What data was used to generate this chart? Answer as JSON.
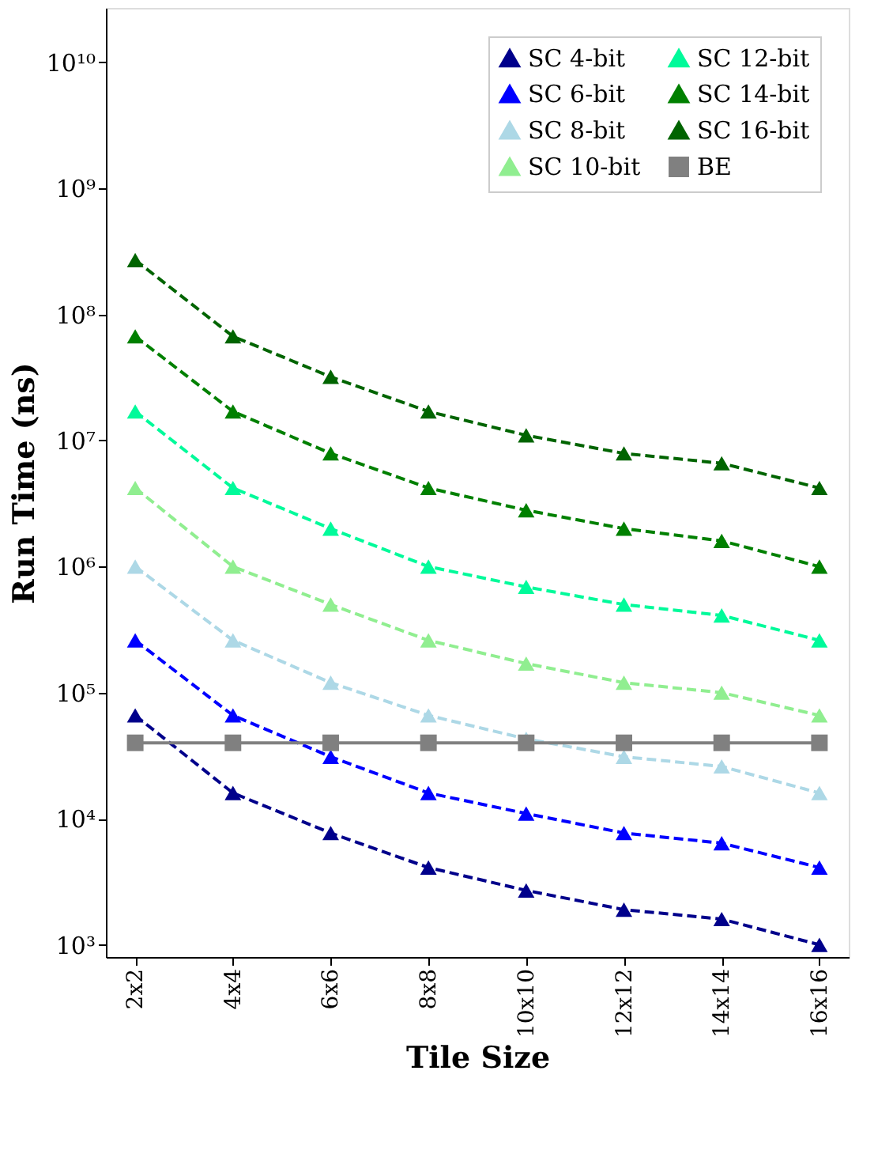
{
  "chart_data": {
    "type": "line",
    "xlabel": "Tile Size",
    "ylabel": "Run Time (ns)",
    "categories": [
      "2x2",
      "4x4",
      "6x6",
      "8x8",
      "10x10",
      "12x12",
      "14x14",
      "16x16"
    ],
    "series": [
      {
        "name": "SC 4-bit",
        "color": "#00008b",
        "marker": "triangle",
        "line_style": "dashed",
        "values": [
          66000,
          16000,
          7700,
          4100,
          2700,
          1900,
          1600,
          1000
        ]
      },
      {
        "name": "SC 6-bit",
        "color": "#0000ff",
        "marker": "triangle",
        "line_style": "dashed",
        "values": [
          260000,
          66000,
          31000,
          16000,
          11000,
          7700,
          6400,
          4100
        ]
      },
      {
        "name": "SC 8-bit",
        "color": "#add8e6",
        "marker": "triangle",
        "line_style": "dashed",
        "values": [
          1000000,
          260000,
          120000,
          66000,
          43000,
          31000,
          26000,
          16000
        ]
      },
      {
        "name": "SC 10-bit",
        "color": "#90ee90",
        "marker": "triangle",
        "line_style": "dashed",
        "values": [
          4200000,
          1000000,
          500000,
          260000,
          170000,
          120000,
          100000,
          66000
        ]
      },
      {
        "name": "SC 12-bit",
        "color": "#00fa9a",
        "marker": "triangle",
        "line_style": "dashed",
        "values": [
          17000000,
          4200000,
          2000000,
          1000000,
          690000,
          500000,
          410000,
          260000
        ]
      },
      {
        "name": "SC 14-bit",
        "color": "#008000",
        "marker": "triangle",
        "line_style": "dashed",
        "values": [
          67000000,
          17000000,
          7900000,
          4200000,
          2800000,
          2000000,
          1600000,
          1000000
        ]
      },
      {
        "name": "SC 16-bit",
        "color": "#006400",
        "marker": "triangle",
        "line_style": "dashed",
        "values": [
          270000000,
          67000000,
          32000000,
          17000000,
          11000000,
          7900000,
          6600000,
          4200000
        ]
      },
      {
        "name": "BE",
        "color": "#808080",
        "marker": "square",
        "line_style": "solid",
        "values": [
          40000,
          40000,
          40000,
          40000,
          40000,
          40000,
          40000,
          40000
        ]
      }
    ],
    "log": true,
    "ylim": [
      800,
      27000000000
    ],
    "yticks": [
      {
        "value": 1000,
        "label": "10³"
      },
      {
        "value": 10000,
        "label": "10⁴"
      },
      {
        "value": 100000,
        "label": "10⁵"
      },
      {
        "value": 1000000,
        "label": "10⁶"
      },
      {
        "value": 10000000,
        "label": "10⁷"
      },
      {
        "value": 100000000,
        "label": "10⁸"
      },
      {
        "value": 1000000000,
        "label": "10⁹"
      },
      {
        "value": 10000000000,
        "label": "10¹⁰"
      }
    ],
    "grid": false,
    "legend": "top right"
  }
}
